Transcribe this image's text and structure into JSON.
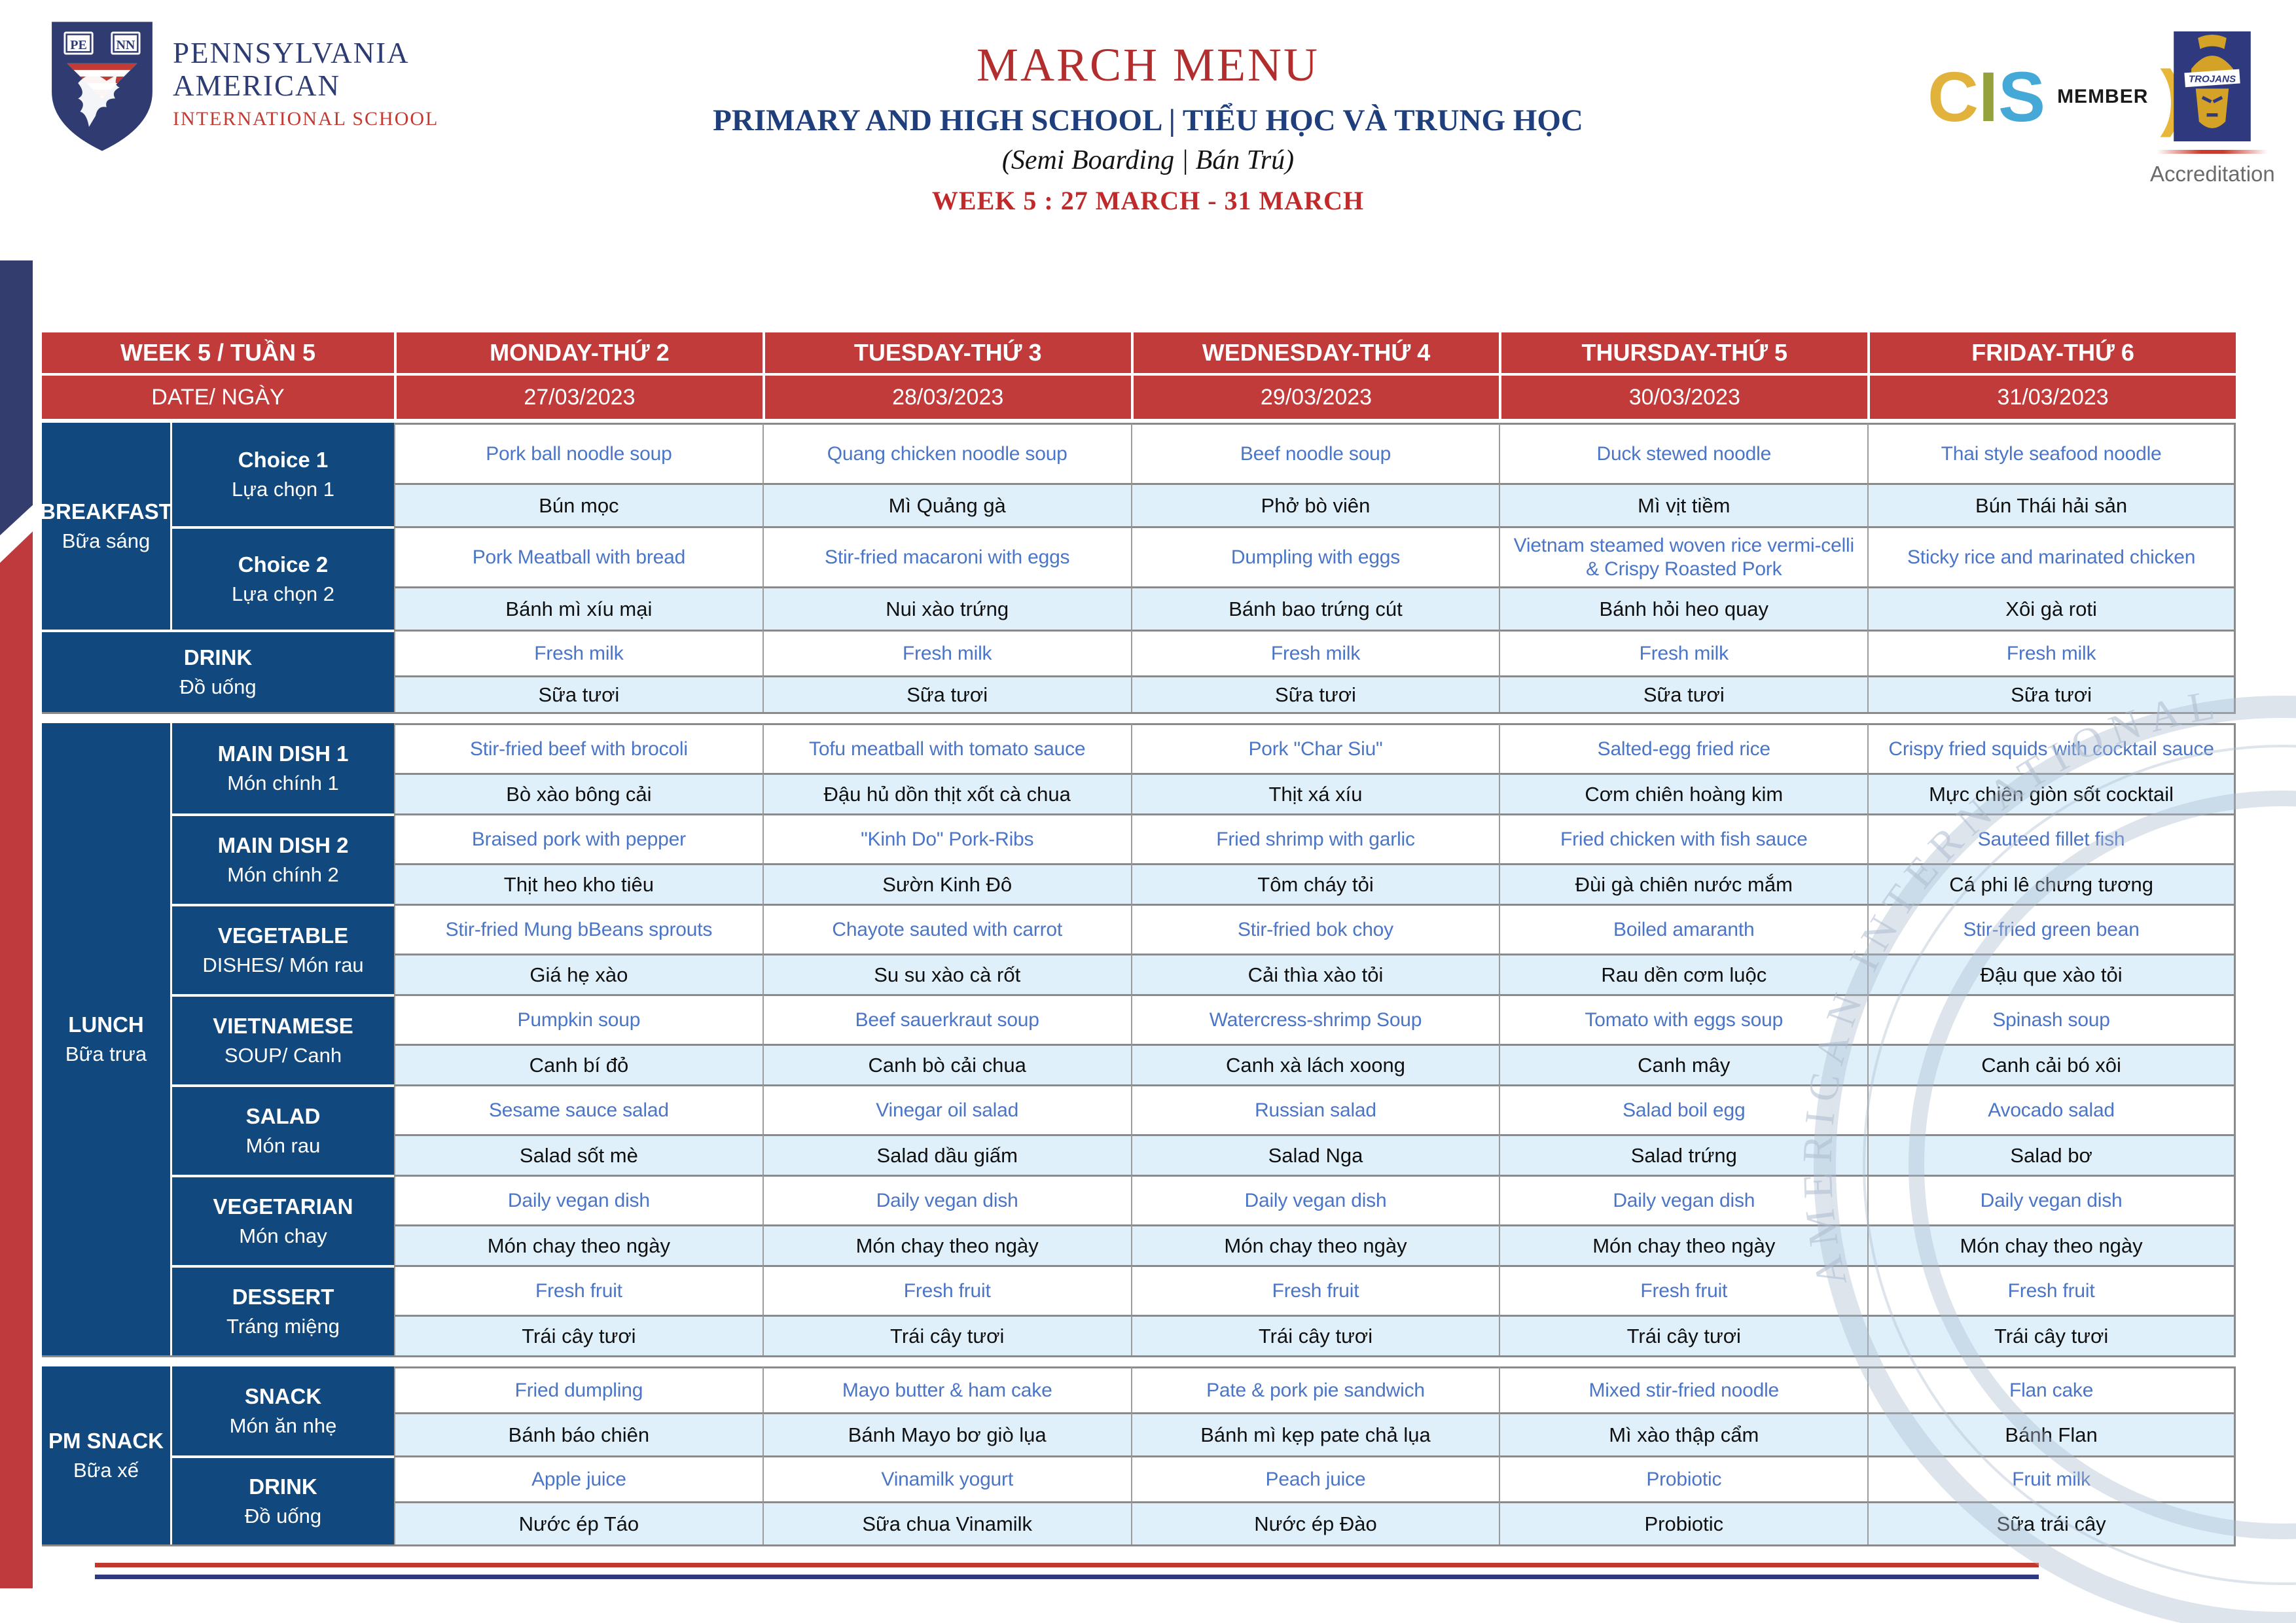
{
  "header": {
    "school": {
      "name_line1": "PENNSYLVANIA",
      "name_line2": "AMERICAN",
      "name_line3": "INTERNATIONAL SCHOOL",
      "shield_monogram_left": "PE",
      "shield_monogram_right": "NN"
    },
    "title": "MARCH MENU",
    "subtitle": "PRIMARY AND HIGH SCHOOL | TIỂU HỌC VÀ TRUNG HỌC",
    "boarding_note": "(Semi Boarding | Bán Trú)",
    "week_line": "WEEK 5 : 27 MARCH - 31 MARCH",
    "cis": {
      "letters": [
        "C",
        "I",
        "S"
      ],
      "member_label": "MEMBER",
      "paren": ")"
    },
    "accreditation": {
      "badge_text": "TROJANS",
      "label": "Accreditation"
    }
  },
  "table": {
    "header_row": [
      "WEEK 5 / TUẦN 5",
      "MONDAY-THỨ 2",
      "TUESDAY-THỨ 3",
      "WEDNESDAY-THỨ 4",
      "THURSDAY-THỨ 5",
      "FRIDAY-THỨ 6"
    ],
    "date_row": [
      "DATE/ NGÀY",
      "27/03/2023",
      "28/03/2023",
      "29/03/2023",
      "30/03/2023",
      "31/03/2023"
    ],
    "sections": [
      {
        "id": "breakfast",
        "label_en": "BREAKFAST",
        "label_vi": "Bữa sáng",
        "merged_label": false,
        "groups": [
          {
            "label_en": "Choice 1",
            "label_vi": "Lựa chọn 1",
            "days": [
              {
                "en": "Pork ball noodle soup",
                "vi": "Bún mọc"
              },
              {
                "en": "Quang chicken noodle soup",
                "vi": "Mì Quảng gà"
              },
              {
                "en": "Beef noodle soup",
                "vi": "Phở bò viên"
              },
              {
                "en": "Duck stewed noodle",
                "vi": "Mì vịt tiềm"
              },
              {
                "en": "Thai style seafood noodle",
                "vi": "Bún Thái hải sản"
              }
            ]
          },
          {
            "label_en": "Choice 2",
            "label_vi": "Lựa chọn 2",
            "days": [
              {
                "en": "Pork Meatball with bread",
                "vi": "Bánh mì xíu mại"
              },
              {
                "en": "Stir-fried macaroni with eggs",
                "vi": "Nui xào trứng"
              },
              {
                "en": "Dumpling with eggs",
                "vi": "Bánh bao trứng cút"
              },
              {
                "en": "Vietnam steamed woven rice vermi-celli & Crispy Roasted Pork",
                "vi": "Bánh hỏi heo quay"
              },
              {
                "en": "Sticky rice and marinated chicken",
                "vi": "Xôi gà roti"
              }
            ]
          }
        ]
      },
      {
        "id": "drink-breakfast",
        "label_en": "DRINK",
        "label_vi": "Đồ uống",
        "merged_label": true,
        "groups": [
          {
            "label_en": null,
            "label_vi": null,
            "days": [
              {
                "en": "Fresh milk",
                "vi": "Sữa tươi"
              },
              {
                "en": "Fresh milk",
                "vi": "Sữa tươi"
              },
              {
                "en": "Fresh milk",
                "vi": "Sữa tươi"
              },
              {
                "en": "Fresh milk",
                "vi": "Sữa tươi"
              },
              {
                "en": "Fresh milk",
                "vi": "Sữa tươi"
              }
            ]
          }
        ]
      },
      {
        "id": "lunch",
        "label_en": "LUNCH",
        "label_vi": "Bữa trưa",
        "merged_label": false,
        "groups": [
          {
            "label_en": "MAIN DISH 1",
            "label_vi": "Món chính 1",
            "days": [
              {
                "en": "Stir-fried beef with brocoli",
                "vi": "Bò xào bông cải"
              },
              {
                "en": "Tofu meatball with tomato sauce",
                "vi": "Đậu hủ dồn thịt xốt cà chua"
              },
              {
                "en": "Pork \"Char Siu\"",
                "vi": "Thịt xá xíu"
              },
              {
                "en": "Salted-egg fried rice",
                "vi": "Cơm chiên hoàng kim"
              },
              {
                "en": "Crispy fried squids with cocktail sauce",
                "vi": "Mực chiên giòn sốt cocktail"
              }
            ]
          },
          {
            "label_en": "MAIN DISH 2",
            "label_vi": "Món chính 2",
            "days": [
              {
                "en": "Braised pork with pepper",
                "vi": "Thịt heo kho tiêu"
              },
              {
                "en": "\"Kinh Do\" Pork-Ribs",
                "vi": "Sườn Kinh Đô"
              },
              {
                "en": "Fried shrimp with garlic",
                "vi": "Tôm cháy tỏi"
              },
              {
                "en": "Fried chicken with fish sauce",
                "vi": "Đùi gà chiên nước mắm"
              },
              {
                "en": "Sauteed fillet fish",
                "vi": "Cá phi lê chưng tương"
              }
            ]
          },
          {
            "label_en": "VEGETABLE",
            "label_vi": "DISHES/ Món rau",
            "days": [
              {
                "en": "Stir-fried Mung bBeans sprouts",
                "vi": "Giá hẹ xào"
              },
              {
                "en": "Chayote sauted with carrot",
                "vi": "Su su xào cà rốt"
              },
              {
                "en": "Stir-fried bok choy",
                "vi": "Cải thìa xào tỏi"
              },
              {
                "en": "Boiled amaranth",
                "vi": "Rau dền cơm luộc"
              },
              {
                "en": "Stir-fried green bean",
                "vi": "Đậu que xào tỏi"
              }
            ]
          },
          {
            "label_en": "VIETNAMESE",
            "label_vi": "SOUP/ Canh",
            "days": [
              {
                "en": "Pumpkin soup",
                "vi": "Canh bí đỏ"
              },
              {
                "en": "Beef sauerkraut soup",
                "vi": "Canh bò cải chua"
              },
              {
                "en": "Watercress-shrimp Soup",
                "vi": "Canh xà lách xoong"
              },
              {
                "en": "Tomato with eggs soup",
                "vi": "Canh mây"
              },
              {
                "en": "Spinash soup",
                "vi": "Canh cải bó xôi"
              }
            ]
          },
          {
            "label_en": "SALAD",
            "label_vi": "Món rau",
            "days": [
              {
                "en": "Sesame sauce salad",
                "vi": "Salad sốt mè"
              },
              {
                "en": "Vinegar oil salad",
                "vi": "Salad dầu giấm"
              },
              {
                "en": "Russian salad",
                "vi": "Salad Nga"
              },
              {
                "en": "Salad boil egg",
                "vi": "Salad trứng"
              },
              {
                "en": "Avocado salad",
                "vi": "Salad bơ"
              }
            ]
          },
          {
            "label_en": "VEGETARIAN",
            "label_vi": "Món chay",
            "days": [
              {
                "en": "Daily vegan dish",
                "vi": "Món chay theo ngày"
              },
              {
                "en": "Daily vegan dish",
                "vi": "Món chay theo ngày"
              },
              {
                "en": "Daily vegan dish",
                "vi": "Món chay theo ngày"
              },
              {
                "en": "Daily vegan dish",
                "vi": "Món chay theo ngày"
              },
              {
                "en": "Daily vegan dish",
                "vi": "Món chay theo ngày"
              }
            ]
          },
          {
            "label_en": "DESSERT",
            "label_vi": "Tráng miệng",
            "days": [
              {
                "en": "Fresh fruit",
                "vi": "Trái cây tươi"
              },
              {
                "en": "Fresh fruit",
                "vi": "Trái cây tươi"
              },
              {
                "en": "Fresh fruit",
                "vi": "Trái cây tươi"
              },
              {
                "en": "Fresh fruit",
                "vi": "Trái cây tươi"
              },
              {
                "en": "Fresh fruit",
                "vi": "Trái cây tươi"
              }
            ]
          }
        ]
      },
      {
        "id": "pm-snack",
        "label_en": "PM SNACK",
        "label_vi": "Bữa xế",
        "merged_label": false,
        "groups": [
          {
            "label_en": "SNACK",
            "label_vi": "Món ăn nhẹ",
            "days": [
              {
                "en": "Fried dumpling",
                "vi": "Bánh báo chiên"
              },
              {
                "en": "Mayo butter & ham cake",
                "vi": "Bánh Mayo bơ giò lụa"
              },
              {
                "en": "Pate & pork pie sandwich",
                "vi": "Bánh mì kẹp pate chả lụa"
              },
              {
                "en": "Mixed stir-fried noodle",
                "vi": "Mì xào thập cẩm"
              },
              {
                "en": "Flan cake",
                "vi": "Bánh Flan"
              }
            ]
          },
          {
            "label_en": "DRINK",
            "label_vi": "Đồ uống",
            "days": [
              {
                "en": "Apple juice",
                "vi": "Nước ép Táo"
              },
              {
                "en": "Vinamilk yogurt",
                "vi": "Sữa chua Vinamilk"
              },
              {
                "en": "Peach juice",
                "vi": "Nước ép Đào"
              },
              {
                "en": "Probiotic",
                "vi": "Probiotic"
              },
              {
                "en": "Fruit milk",
                "vi": "Sữa trái cây"
              }
            ]
          }
        ]
      }
    ]
  },
  "watermark": {
    "arc_text": "AMERICAN INTERNATIONAL"
  },
  "colors": {
    "header_red": "#c13b3b",
    "cell_navy": "#11497f",
    "ribbon_navy": "#333d6e",
    "ribbon_red": "#bf3a3c",
    "item_text_blue": "#4b75c7",
    "vn_row_bg": "#dff0fa",
    "grid_gray": "#8a8a8a",
    "title_red": "#b22e2e",
    "subtitle_navy": "#1e3e7c",
    "accent_gold": "#e8b73a"
  }
}
